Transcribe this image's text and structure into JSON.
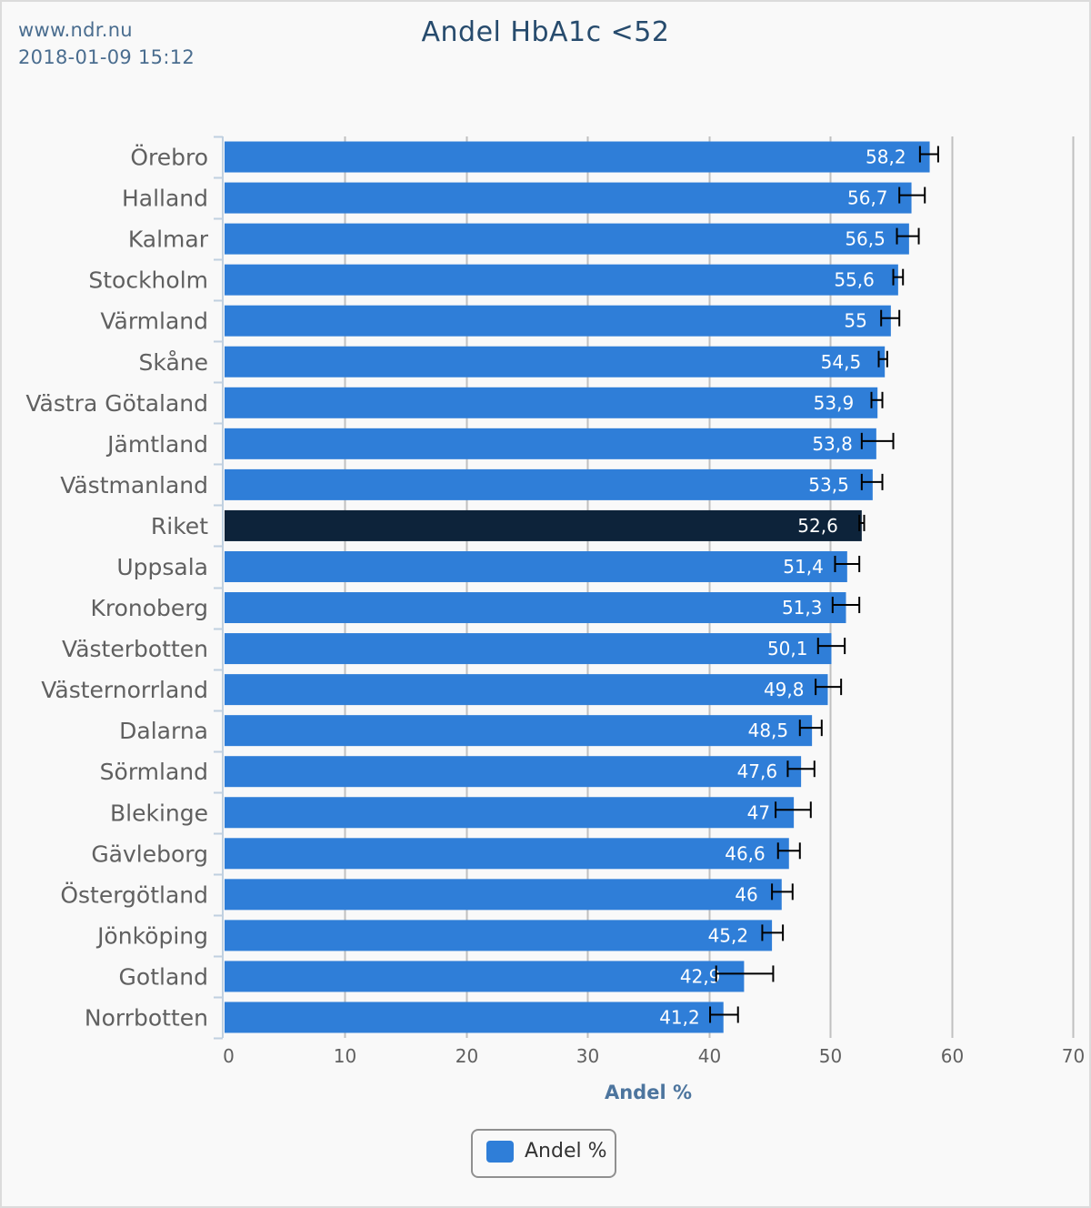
{
  "header": {
    "site": "www.ndr.nu",
    "timestamp": "2018-01-09 15:12"
  },
  "colors": {
    "bar": "#2f7ed8",
    "highlight_bar": "#0d233a",
    "error_bar": "#000000",
    "grid": "#c0c0c0",
    "axis_line": "#c0d0e0"
  },
  "legend": {
    "label": "Andel %"
  },
  "chart_data": {
    "type": "bar",
    "orientation": "horizontal",
    "title": "Andel HbA1c <52",
    "xlabel": "Andel %",
    "ylabel": "",
    "xlim": [
      0,
      70
    ],
    "xticks": [
      0,
      10,
      20,
      30,
      40,
      50,
      60,
      70
    ],
    "grid": true,
    "legend_position": "bottom-center",
    "categories": [
      "Örebro",
      "Halland",
      "Kalmar",
      "Stockholm",
      "Värmland",
      "Skåne",
      "Västra Götaland",
      "Jämtland",
      "Västmanland",
      "Riket",
      "Uppsala",
      "Kronoberg",
      "Västerbotten",
      "Västernorrland",
      "Dalarna",
      "Sörmland",
      "Blekinge",
      "Gävleborg",
      "Östergötland",
      "Jönköping",
      "Gotland",
      "Norrbotten"
    ],
    "highlight_category": "Riket",
    "series": [
      {
        "name": "Andel %",
        "values": [
          58.2,
          56.7,
          56.5,
          55.6,
          55.0,
          54.5,
          53.9,
          53.8,
          53.5,
          52.6,
          51.4,
          51.3,
          50.1,
          49.8,
          48.5,
          47.6,
          47.0,
          46.6,
          46.0,
          45.2,
          42.9,
          41.2
        ],
        "value_labels": [
          "58,2",
          "56,7",
          "56,5",
          "55,6",
          "55",
          "54,5",
          "53,9",
          "53,8",
          "53,5",
          "52,6",
          "51,4",
          "51,3",
          "50,1",
          "49,8",
          "48,5",
          "47,6",
          "47",
          "46,6",
          "46",
          "45,2",
          "42,9",
          "41,2"
        ],
        "error_low": [
          57.4,
          55.7,
          55.5,
          55.2,
          54.2,
          54.0,
          53.4,
          52.6,
          52.6,
          52.4,
          50.4,
          50.2,
          49.0,
          48.8,
          47.5,
          46.5,
          45.5,
          45.7,
          45.2,
          44.4,
          40.6,
          40.1
        ],
        "error_high": [
          58.9,
          57.8,
          57.3,
          56.0,
          55.7,
          54.7,
          54.3,
          55.2,
          54.3,
          52.8,
          52.4,
          52.4,
          51.2,
          50.9,
          49.3,
          48.7,
          48.4,
          47.5,
          46.9,
          46.1,
          45.3,
          42.4
        ]
      }
    ]
  }
}
